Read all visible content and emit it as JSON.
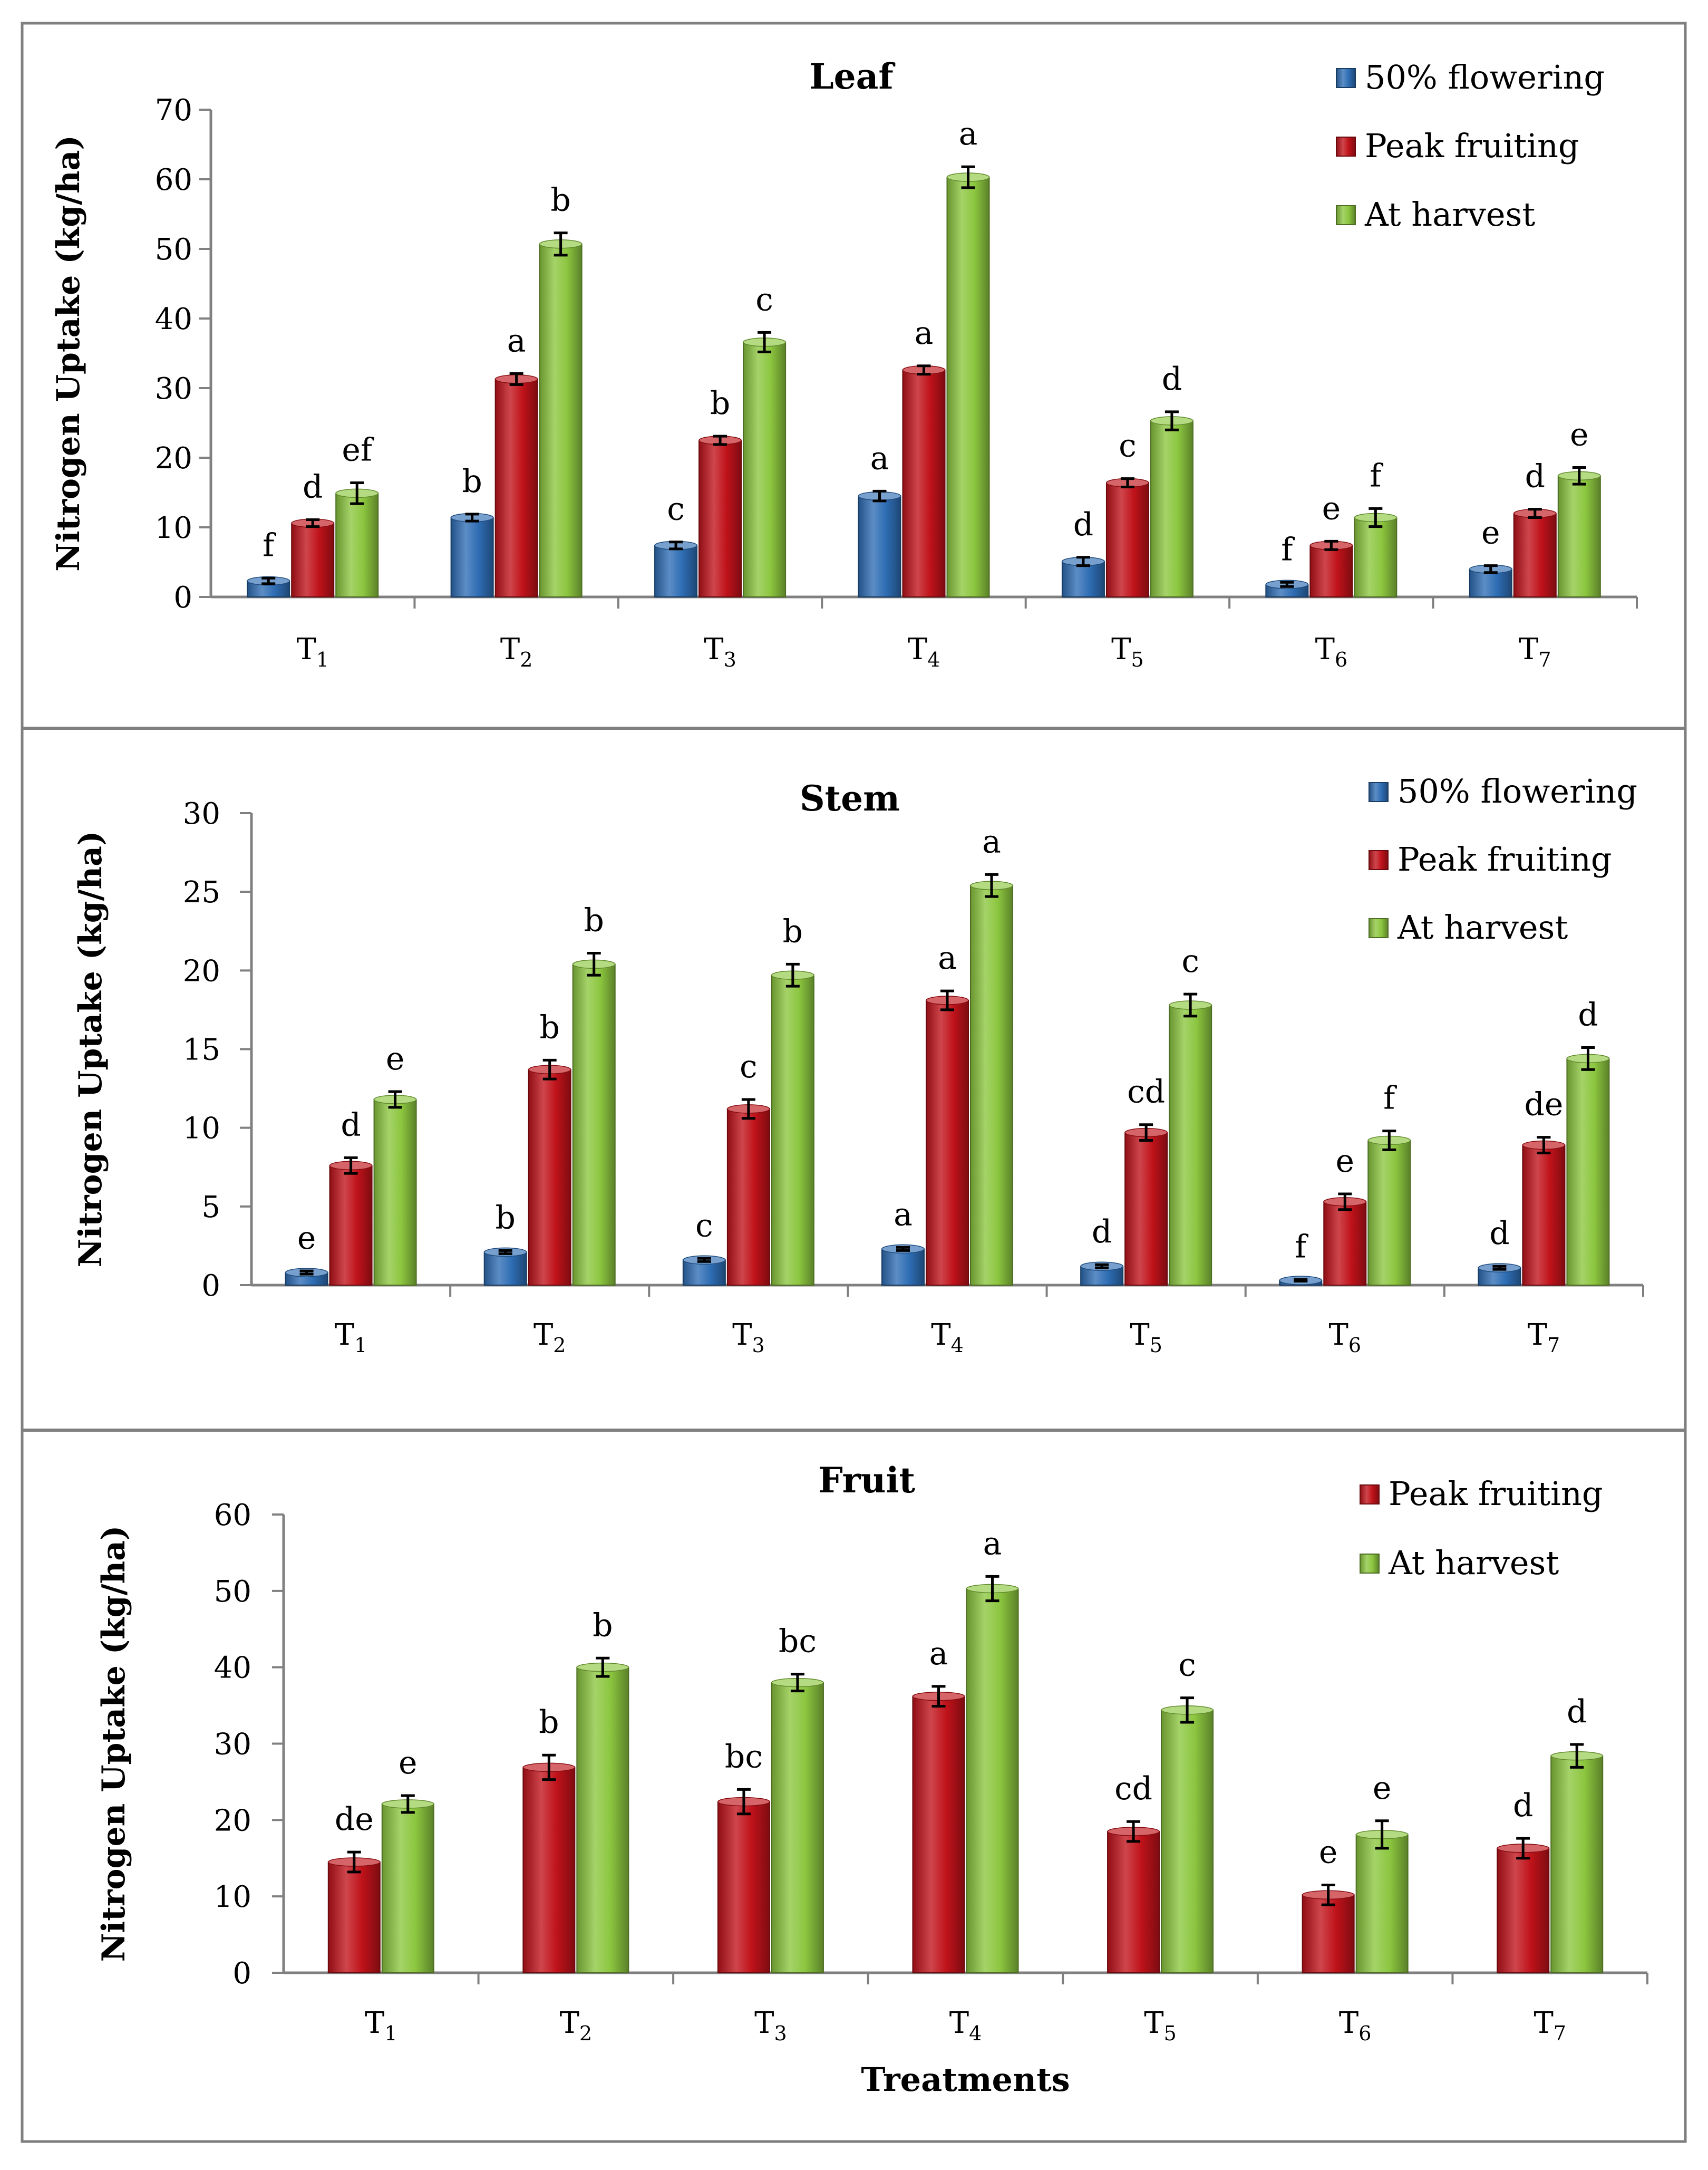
{
  "figure": {
    "xlabel": "Treatments",
    "ylabel": "Nitrogen Uptake (kg/ha)",
    "categories": [
      "T1",
      "T2",
      "T3",
      "T4",
      "T5",
      "T6",
      "T7"
    ],
    "colors": {
      "50% flowering": "#2E6DB4",
      "Peak fruiting": "#C0121A",
      "At harvest": "#8CC63F",
      "frame": "#7F7F7F",
      "axis": "#808080",
      "text": "#000000"
    }
  },
  "chart_data": [
    {
      "type": "bar",
      "title": "Leaf",
      "ylabel": "Nitrogen Uptake (kg/ha)",
      "categories": [
        "T1",
        "T2",
        "T3",
        "T4",
        "T5",
        "T6",
        "T7"
      ],
      "ylim": [
        0,
        70
      ],
      "yticks": [
        0,
        10,
        20,
        30,
        40,
        50,
        60,
        70
      ],
      "legend": "top-right",
      "series": [
        {
          "name": "50% flowering",
          "values": [
            2.3,
            11.4,
            7.4,
            14.5,
            5.1,
            1.8,
            4.0
          ],
          "errors": [
            0.4,
            0.5,
            0.5,
            0.7,
            0.6,
            0.3,
            0.5
          ],
          "letters": [
            "f",
            "b",
            "c",
            "a",
            "d",
            "f",
            "e"
          ]
        },
        {
          "name": "Peak fruiting",
          "values": [
            10.6,
            31.3,
            22.5,
            32.6,
            16.4,
            7.4,
            12.0
          ],
          "errors": [
            0.5,
            0.8,
            0.6,
            0.6,
            0.6,
            0.6,
            0.6
          ],
          "letters": [
            "d",
            "a",
            "b",
            "a",
            "c",
            "e",
            "d"
          ]
        },
        {
          "name": "At harvest",
          "values": [
            14.9,
            50.7,
            36.6,
            60.3,
            25.3,
            11.4,
            17.4
          ],
          "errors": [
            1.5,
            1.6,
            1.4,
            1.5,
            1.3,
            1.3,
            1.2
          ],
          "letters": [
            "ef",
            "b",
            "c",
            "a",
            "d",
            "f",
            "e"
          ]
        }
      ]
    },
    {
      "type": "bar",
      "title": "Stem",
      "ylabel": "Nitrogen Uptake (kg/ha)",
      "categories": [
        "T1",
        "T2",
        "T3",
        "T4",
        "T5",
        "T6",
        "T7"
      ],
      "ylim": [
        0,
        30
      ],
      "yticks": [
        0,
        5,
        10,
        15,
        20,
        25,
        30
      ],
      "legend": "top-right",
      "series": [
        {
          "name": "50% flowering",
          "values": [
            0.8,
            2.1,
            1.6,
            2.3,
            1.2,
            0.3,
            1.1
          ],
          "errors": [
            0.1,
            0.1,
            0.1,
            0.1,
            0.1,
            0.05,
            0.1
          ],
          "letters": [
            "e",
            "b",
            "c",
            "a",
            "d",
            "f",
            "d"
          ]
        },
        {
          "name": "Peak fruiting",
          "values": [
            7.6,
            13.7,
            11.2,
            18.1,
            9.7,
            5.3,
            8.9
          ],
          "errors": [
            0.5,
            0.6,
            0.6,
            0.6,
            0.5,
            0.5,
            0.5
          ],
          "letters": [
            "d",
            "b",
            "c",
            "a",
            "cd",
            "e",
            "de"
          ]
        },
        {
          "name": "At harvest",
          "values": [
            11.8,
            20.4,
            19.7,
            25.4,
            17.8,
            9.2,
            14.4
          ],
          "errors": [
            0.5,
            0.7,
            0.7,
            0.7,
            0.7,
            0.6,
            0.7
          ],
          "letters": [
            "e",
            "b",
            "b",
            "a",
            "c",
            "f",
            "d"
          ]
        }
      ]
    },
    {
      "type": "bar",
      "title": "Fruit",
      "ylabel": "Nitrogen Uptake (kg/ha)",
      "xlabel": "Treatments",
      "categories": [
        "T1",
        "T2",
        "T3",
        "T4",
        "T5",
        "T6",
        "T7"
      ],
      "ylim": [
        0,
        60
      ],
      "yticks": [
        0,
        10,
        20,
        30,
        40,
        50,
        60
      ],
      "legend": "top-right",
      "series": [
        {
          "name": "Peak fruiting",
          "values": [
            14.5,
            26.9,
            22.4,
            36.2,
            18.5,
            10.2,
            16.3
          ],
          "errors": [
            1.3,
            1.6,
            1.6,
            1.3,
            1.3,
            1.3,
            1.3
          ],
          "letters": [
            "de",
            "b",
            "bc",
            "a",
            "cd",
            "e",
            "d"
          ]
        },
        {
          "name": "At harvest",
          "values": [
            22.1,
            40.0,
            38.0,
            50.3,
            34.4,
            18.1,
            28.4
          ],
          "errors": [
            1.1,
            1.2,
            1.1,
            1.6,
            1.6,
            1.8,
            1.5
          ],
          "letters": [
            "e",
            "b",
            "bc",
            "a",
            "c",
            "e",
            "d"
          ]
        }
      ]
    }
  ]
}
